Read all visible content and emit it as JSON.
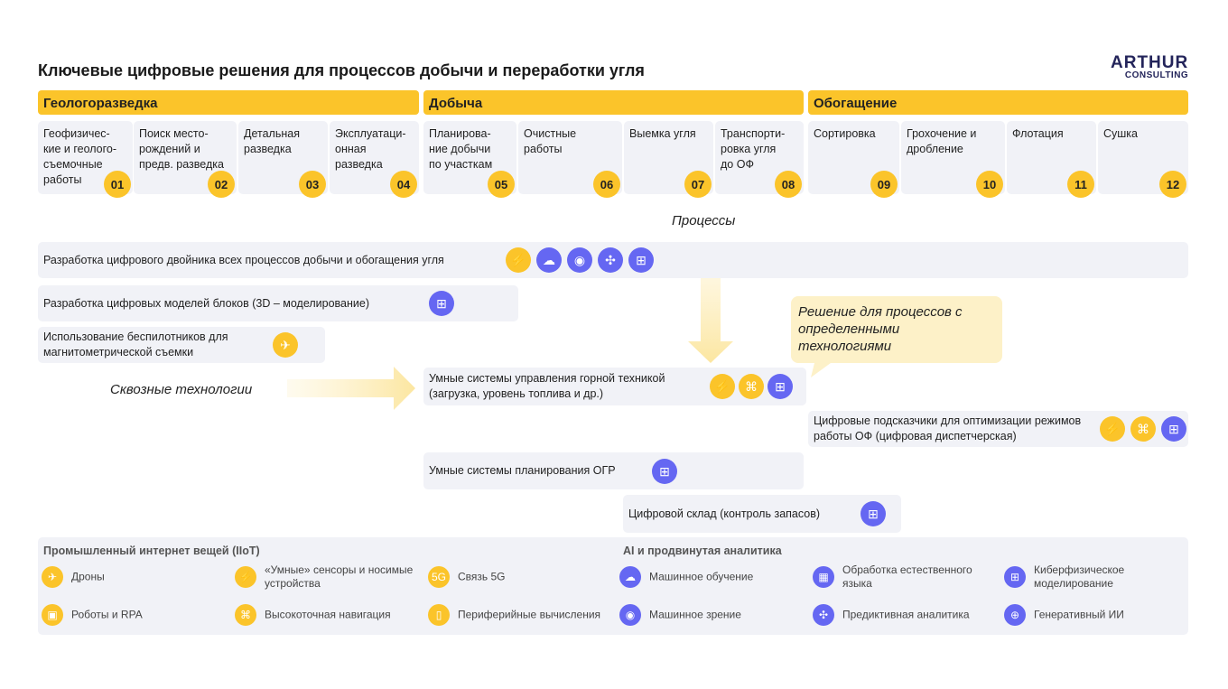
{
  "title": "Ключевые цифровые решения для процессов добычи и переработки угля",
  "logo": {
    "line1": "ARTHUR",
    "line2": "CONSULTING"
  },
  "colors": {
    "accent": "#FBC42A",
    "tech": "#6567F2",
    "panel": "#F1F2F7",
    "callout": "#FDF1C8"
  },
  "phases": [
    "Геологоразведка",
    "Добыча",
    "Обогащение"
  ],
  "processes": [
    {
      "label": "Геофизичес-кие и геолого-съемочные работы",
      "num": "01"
    },
    {
      "label": "Поиск место-рождений и предв. разведка",
      "num": "02"
    },
    {
      "label": "Детальная разведка",
      "num": "03"
    },
    {
      "label": "Эксплуатаци-онная разведка",
      "num": "04"
    },
    {
      "label": "Планирова-ние добычи по участкам",
      "num": "05"
    },
    {
      "label": "Очистные работы",
      "num": "06"
    },
    {
      "label": "Выемка угля",
      "num": "07"
    },
    {
      "label": "Транспорти-ровка угля до ОФ",
      "num": "08"
    },
    {
      "label": "Сортировка",
      "num": "09"
    },
    {
      "label": "Грохочение и дробление",
      "num": "10"
    },
    {
      "label": "Флотация",
      "num": "11"
    },
    {
      "label": "Сушка",
      "num": "12"
    }
  ],
  "labels": {
    "processes": "Процессы",
    "cross": "Сквозные технологии",
    "callout": "Решение для процессов с определенными технологиями"
  },
  "solutions": [
    {
      "label": "Разработка цифрового двойника всех процессов добычи и обогащения угля",
      "icons": [
        "sensor-icon",
        "cloud-ml-icon",
        "vision-icon",
        "predictive-icon",
        "cyberphysical-icon"
      ]
    },
    {
      "label": "Разработка цифровых моделей блоков (3D – моделирование)",
      "icons": [
        "cyberphysical-icon"
      ]
    },
    {
      "label": "Использование беспилотников для магнитометрической съемки",
      "icons": [
        "drone-icon"
      ]
    },
    {
      "label": "Умные системы управления горной техникой (загрузка, уровень топлива и др.)",
      "icons": [
        "sensor-icon",
        "navigation-icon",
        "cyberphysical-icon"
      ]
    },
    {
      "label": "Цифровые подсказчики для оптимизации режимов работы ОФ (цифровая диспетчерская)",
      "icons": [
        "sensor-icon",
        "navigation-icon",
        "cyberphysical-icon"
      ]
    },
    {
      "label": "Умные системы планирования ОГР",
      "icons": [
        "cyberphysical-icon"
      ]
    },
    {
      "label": "Цифровой склад (контроль запасов)",
      "icons": [
        "cyberphysical-icon"
      ]
    }
  ],
  "legend": {
    "iiot_title": "Промышленный интернет вещей (IIoT)",
    "ai_title": "AI и продвинутая аналитика",
    "iiot": [
      {
        "label": "Дроны",
        "icon": "drone-icon"
      },
      {
        "label": "«Умные» сенсоры и носимые устройства",
        "icon": "sensor-icon"
      },
      {
        "label": "Связь 5G",
        "icon": "5g-icon"
      },
      {
        "label": "Роботы и RPA",
        "icon": "robot-icon"
      },
      {
        "label": "Высокоточная навигация",
        "icon": "navigation-icon"
      },
      {
        "label": "Периферийные вычисления",
        "icon": "edge-computing-icon"
      }
    ],
    "ai": [
      {
        "label": "Машинное обучение",
        "icon": "cloud-ml-icon"
      },
      {
        "label": "Обработка естественного языка",
        "icon": "nlp-icon"
      },
      {
        "label": "Киберфизическое моделирование",
        "icon": "cyberphysical-icon"
      },
      {
        "label": "Машинное зрение",
        "icon": "vision-icon"
      },
      {
        "label": "Предиктивная аналитика",
        "icon": "predictive-icon"
      },
      {
        "label": "Генеративный ИИ",
        "icon": "genai-icon"
      }
    ]
  }
}
